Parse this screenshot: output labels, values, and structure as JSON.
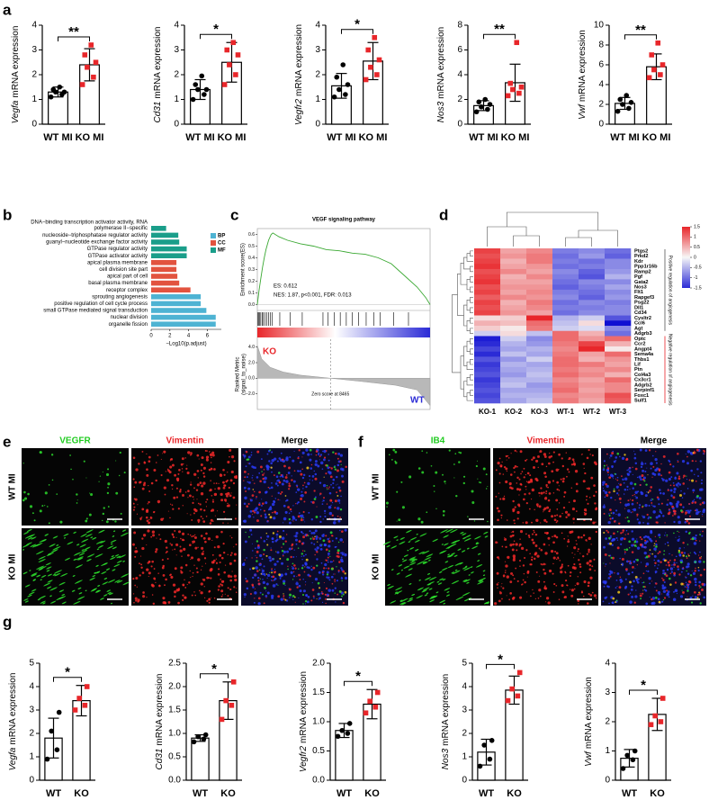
{
  "panel_labels": [
    "a",
    "b",
    "c",
    "d",
    "e",
    "f",
    "g"
  ],
  "chart_data": [
    {
      "type": "bar",
      "gene": "Vegfa",
      "ylabel": "mRNA expression",
      "categories": [
        "WT MI",
        "KO MI"
      ],
      "values": [
        1.3,
        2.4
      ],
      "errors": [
        0.2,
        0.65
      ],
      "points": [
        [
          1.1,
          1.2,
          1.3,
          1.3,
          1.4,
          1.5
        ],
        [
          1.6,
          1.9,
          2.3,
          2.5,
          2.8,
          3.2
        ]
      ],
      "colors": [
        "#000000",
        "#e8262a"
      ],
      "annotation": "**",
      "ylim": [
        0,
        4
      ],
      "yticks": [
        0,
        1,
        2,
        3,
        4
      ]
    },
    {
      "type": "bar",
      "gene": "Cd31",
      "ylabel": "mRNA expression",
      "categories": [
        "WT MI",
        "KO MI"
      ],
      "values": [
        1.4,
        2.5
      ],
      "errors": [
        0.4,
        0.8
      ],
      "points": [
        [
          1.0,
          1.2,
          1.4,
          1.4,
          1.6,
          1.95
        ],
        [
          1.6,
          2.0,
          2.4,
          2.8,
          3.0,
          3.3
        ]
      ],
      "colors": [
        "#000000",
        "#e8262a"
      ],
      "annotation": "*",
      "ylim": [
        0,
        4
      ],
      "yticks": [
        0,
        1,
        2,
        3,
        4
      ]
    },
    {
      "type": "bar",
      "gene": "Vegfr2",
      "ylabel": "mRNA expression",
      "categories": [
        "WT MI",
        "KO MI"
      ],
      "values": [
        1.55,
        2.55
      ],
      "errors": [
        0.5,
        0.75
      ],
      "points": [
        [
          1.1,
          1.2,
          1.4,
          1.6,
          1.9,
          2.4
        ],
        [
          1.8,
          2.0,
          2.3,
          2.6,
          3.0,
          3.5
        ]
      ],
      "colors": [
        "#000000",
        "#e8262a"
      ],
      "annotation": "*",
      "ylim": [
        0,
        4
      ],
      "yticks": [
        0,
        1,
        2,
        3,
        4
      ]
    },
    {
      "type": "bar",
      "gene": "Nos3",
      "ylabel": "mRNA expression",
      "categories": [
        "WT MI",
        "KO MI"
      ],
      "values": [
        1.5,
        3.35
      ],
      "errors": [
        0.4,
        1.5
      ],
      "points": [
        [
          1.0,
          1.2,
          1.4,
          1.6,
          1.8,
          2.0
        ],
        [
          2.3,
          2.5,
          2.8,
          3.0,
          3.3,
          6.6
        ]
      ],
      "colors": [
        "#000000",
        "#e8262a"
      ],
      "annotation": "**",
      "ylim": [
        0,
        8
      ],
      "yticks": [
        0,
        2,
        4,
        6,
        8
      ]
    },
    {
      "type": "bar",
      "gene": "Vwf",
      "ylabel": "mRNA expression",
      "categories": [
        "WT MI",
        "KO MI"
      ],
      "values": [
        2.1,
        5.8
      ],
      "errors": [
        0.6,
        1.3
      ],
      "points": [
        [
          1.3,
          1.6,
          2.0,
          2.2,
          2.5,
          2.9
        ],
        [
          4.7,
          5.0,
          5.5,
          6.0,
          7.0,
          8.2
        ]
      ],
      "colors": [
        "#000000",
        "#e8262a"
      ],
      "annotation": "**",
      "ylim": [
        0,
        10
      ],
      "yticks": [
        0,
        2,
        4,
        6,
        8,
        10
      ]
    },
    {
      "type": "hbar",
      "categories": [
        [
          "DNA−binding transcription activator activity, RNA",
          "polymerase II−specific"
        ],
        "nucleoside−triphosphatase regulator activity",
        "guanyl−nucleotide exchange factor activity",
        "GTPase regulator activity",
        "GTPase activator activity",
        "apical plasma membrane",
        "cell division site part",
        "apical part of cell",
        "basal plasma membrane",
        "receptor complex",
        "sprouting angiogenesis",
        "positive regulation of cell cycle process",
        "small GTPase mediated signal transduction",
        "nuclear division",
        "organelle fission"
      ],
      "series": [
        {
          "name": "BP",
          "color": "#4eb3d3",
          "values": [
            null,
            null,
            null,
            null,
            null,
            null,
            null,
            null,
            null,
            null,
            5.3,
            5.3,
            5.9,
            6.9,
            6.9
          ]
        },
        {
          "name": "CC",
          "color": "#e2533f",
          "values": [
            null,
            null,
            null,
            null,
            null,
            2.7,
            2.7,
            2.8,
            3.0,
            4.2,
            null,
            null,
            null,
            null,
            null
          ]
        },
        {
          "name": "MF",
          "color": "#1a9e8a",
          "values": [
            1.6,
            2.9,
            3.0,
            3.8,
            3.8,
            null,
            null,
            null,
            null,
            null,
            null,
            null,
            null,
            null,
            null
          ]
        }
      ],
      "xlabel": "−Log10(p.adjust)",
      "xlim": [
        0,
        7.5
      ],
      "xticks": [
        0,
        2,
        4,
        6
      ],
      "legend": "right"
    },
    {
      "type": "gsea",
      "title": "VEGF signaling pathway",
      "ylabel": "Enrichment score(ES)",
      "color": "#3aa832",
      "x": [
        0,
        200,
        400,
        600,
        800,
        1000,
        1300,
        1600,
        1800,
        2500,
        3500,
        5000,
        6500,
        8000,
        9500,
        11000,
        12500,
        14000,
        15500,
        17000,
        18500,
        19500,
        20000
      ],
      "values": [
        0,
        0.12,
        0.22,
        0.32,
        0.4,
        0.47,
        0.55,
        0.6,
        0.612,
        0.58,
        0.55,
        0.52,
        0.5,
        0.47,
        0.46,
        0.44,
        0.43,
        0.4,
        0.35,
        0.25,
        0.15,
        0.06,
        0
      ],
      "xlim": [
        0,
        20000
      ],
      "ylim": [
        -0.05,
        0.65
      ],
      "yticks": [
        {
          "value": 0,
          "label": "0.0"
        },
        0.1,
        0.2,
        0.3,
        0.4,
        0.5,
        0.6
      ],
      "hits": [
        50,
        150,
        250,
        400,
        550,
        700,
        900,
        1100,
        1300,
        1500,
        1700,
        2600,
        3800,
        5200,
        7600,
        8200,
        8900,
        9600,
        10300,
        11000,
        11700,
        12600,
        13500,
        14200,
        15800,
        17500
      ],
      "metric_x": [
        0,
        500,
        1500,
        3000,
        5000,
        8465,
        12000,
        16000,
        18500,
        20000
      ],
      "metric": [
        4.2,
        2.5,
        1.4,
        0.8,
        0.4,
        0,
        -0.4,
        -0.9,
        -1.5,
        -3.5
      ],
      "metric_ylim": [
        -4,
        5
      ],
      "metric_yticks": [
        {
          "value": 4,
          "label": "4.0"
        },
        {
          "value": 2,
          "label": "2.0"
        },
        {
          "value": 0,
          "label": "0.0"
        },
        {
          "value": -2,
          "label": "-2.0"
        }
      ],
      "metric_ylabel": [
        "Ranked Metric",
        "(signal_to_noise)"
      ],
      "zero_x": 8465,
      "es_label": "ES: 0.612",
      "stats": "NES: 1.87, p<0.001, FDR: 0.013",
      "zero_label": "Zero score at 8465",
      "low_label": "KO",
      "high_label": "WT"
    },
    {
      "type": "heatmap",
      "rows": [
        "Ptgs2",
        "Prkd2",
        "Kdr",
        "Ppp1r16b",
        "Ramp2",
        "Pgf",
        "Gata2",
        "Nos3",
        "Flt1",
        "Rapgef3",
        "Psg22",
        "Dll1",
        "Cd34",
        "Cysltr2",
        "Ccl6",
        "Agt",
        "Adgrb3",
        "Optc",
        "Ccr2",
        "Angpt4",
        "Sema4a",
        "Thbs1",
        "Lif",
        "Ptn",
        "Col4a3",
        "Cx3cr1",
        "Adgrb2",
        "Serpinf1",
        "Foxc1",
        "Sulf1"
      ],
      "columns": [
        "KO-1",
        "KO-2",
        "KO-3",
        "WT-1",
        "WT-2",
        "WT-3"
      ],
      "values": [
        [
          1.3,
          0.6,
          0.8,
          -0.9,
          -0.8,
          -1.0
        ],
        [
          1.2,
          0.7,
          0.9,
          -1.0,
          -0.7,
          -1.1
        ],
        [
          1.3,
          0.5,
          0.9,
          -0.9,
          -1.0,
          -0.8
        ],
        [
          1.4,
          0.6,
          0.7,
          -1.0,
          -0.9,
          -0.8
        ],
        [
          1.2,
          0.8,
          0.6,
          -0.8,
          -1.1,
          -0.7
        ],
        [
          1.3,
          0.5,
          0.8,
          -0.9,
          -1.2,
          -0.5
        ],
        [
          1.4,
          0.6,
          0.6,
          -1.0,
          -0.8,
          -0.8
        ],
        [
          1.2,
          0.7,
          0.7,
          -1.1,
          -0.9,
          -0.6
        ],
        [
          1.3,
          0.6,
          0.8,
          -0.9,
          -1.0,
          -0.8
        ],
        [
          1.1,
          0.8,
          0.7,
          -0.8,
          -1.1,
          -0.7
        ],
        [
          1.3,
          0.5,
          0.9,
          -1.0,
          -0.8,
          -0.9
        ],
        [
          1.2,
          0.6,
          0.8,
          -0.9,
          -0.9,
          -0.8
        ],
        [
          1.3,
          0.7,
          0.6,
          -1.0,
          -0.8,
          -0.8
        ],
        [
          0.2,
          0.3,
          1.5,
          -0.5,
          -0.3,
          -1.2
        ],
        [
          0.5,
          0.4,
          1.0,
          -0.4,
          0.2,
          -1.7
        ],
        [
          0.3,
          0.1,
          0.9,
          -0.3,
          -0.2,
          -0.8
        ],
        [
          -0.3,
          0.2,
          -0.4,
          1.0,
          0.5,
          -1.0
        ],
        [
          -1.6,
          -0.3,
          -0.8,
          1.0,
          0.7,
          1.0
        ],
        [
          -1.5,
          -0.5,
          -0.7,
          0.9,
          1.3,
          0.5
        ],
        [
          -1.3,
          -0.6,
          -0.5,
          0.8,
          1.5,
          0.1
        ],
        [
          -1.5,
          -0.4,
          -0.6,
          0.9,
          0.6,
          1.0
        ],
        [
          -1.2,
          -0.7,
          -0.3,
          1.0,
          0.5,
          0.7
        ],
        [
          -1.4,
          -0.5,
          -0.6,
          1.0,
          0.9,
          0.6
        ],
        [
          -1.3,
          -0.6,
          -0.5,
          0.9,
          0.7,
          0.8
        ],
        [
          -1.2,
          -0.7,
          -0.4,
          1.0,
          0.8,
          0.5
        ],
        [
          -1.4,
          -0.5,
          -0.5,
          0.8,
          0.6,
          1.0
        ],
        [
          -1.3,
          -0.4,
          -0.7,
          0.9,
          0.7,
          0.8
        ],
        [
          -1.2,
          -0.6,
          -0.6,
          1.0,
          0.6,
          0.8
        ],
        [
          -1.3,
          -0.5,
          -0.5,
          0.8,
          0.7,
          1.2
        ],
        [
          -1.2,
          -0.6,
          -0.4,
          0.9,
          0.6,
          1.1
        ]
      ],
      "zlim": [
        -1.5,
        1.5
      ],
      "zticks": [
        1.5,
        1,
        0.5,
        0,
        -0.5,
        -1,
        -1.5
      ],
      "colors": [
        "#2b2bd6",
        "#f7f7f7",
        "#e8262a"
      ],
      "groups": [
        "Positive regulation of angiogenesis",
        "Negative regulation of angiogenesis"
      ]
    },
    {
      "type": "bar",
      "gene": "Vegfa",
      "ylabel": "mRNA expression",
      "categories": [
        "WT",
        "KO"
      ],
      "values": [
        1.8,
        3.4
      ],
      "errors": [
        0.85,
        0.65
      ],
      "points": [
        [
          0.9,
          1.3,
          2.1,
          2.9
        ],
        [
          3.0,
          3.2,
          3.5,
          4.0
        ]
      ],
      "colors": [
        "#000000",
        "#e8262a"
      ],
      "annotation": "*",
      "ylim": [
        0,
        5
      ],
      "yticks": [
        0,
        1,
        2,
        3,
        4,
        5
      ]
    },
    {
      "type": "bar",
      "gene": "Cd31",
      "ylabel": "mRNA expression",
      "categories": [
        "WT",
        "KO"
      ],
      "values": [
        0.9,
        1.7
      ],
      "errors": [
        0.07,
        0.4
      ],
      "points": [
        [
          0.82,
          0.88,
          0.93,
          0.97
        ],
        [
          1.3,
          1.6,
          1.7,
          2.1
        ]
      ],
      "colors": [
        "#000000",
        "#e8262a"
      ],
      "annotation": "*",
      "ylim": [
        0,
        2.5
      ],
      "yticks": [
        {
          "value": 0,
          "label": "0.0"
        },
        0.5,
        {
          "value": 1,
          "label": "1.0"
        },
        1.5,
        {
          "value": 2,
          "label": "2.0"
        },
        2.5
      ]
    },
    {
      "type": "bar",
      "gene": "Vegfr2",
      "ylabel": "mRNA expression",
      "categories": [
        "WT",
        "KO"
      ],
      "values": [
        0.85,
        1.3
      ],
      "errors": [
        0.12,
        0.25
      ],
      "points": [
        [
          0.75,
          0.8,
          0.85,
          0.97
        ],
        [
          1.15,
          1.25,
          1.35,
          1.5
        ]
      ],
      "colors": [
        "#000000",
        "#e8262a"
      ],
      "annotation": "*",
      "ylim": [
        0,
        2
      ],
      "yticks": [
        {
          "value": 0,
          "label": "0.0"
        },
        0.5,
        {
          "value": 1,
          "label": "1.0"
        },
        1.5,
        {
          "value": 2,
          "label": "2.0"
        }
      ]
    },
    {
      "type": "bar",
      "gene": "Nos3",
      "ylabel": "mRNA expression",
      "categories": [
        "WT",
        "KO"
      ],
      "values": [
        1.2,
        3.85
      ],
      "errors": [
        0.55,
        0.6
      ],
      "points": [
        [
          0.6,
          0.9,
          1.5,
          1.7
        ],
        [
          3.4,
          3.6,
          3.9,
          4.6
        ]
      ],
      "colors": [
        "#000000",
        "#e8262a"
      ],
      "annotation": "*",
      "ylim": [
        0,
        5
      ],
      "yticks": [
        0,
        1,
        2,
        3,
        4,
        5
      ]
    },
    {
      "type": "bar",
      "gene": "Vwf",
      "ylabel": "mRNA expression",
      "categories": [
        "WT",
        "KO"
      ],
      "values": [
        0.75,
        2.25
      ],
      "errors": [
        0.3,
        0.55
      ],
      "points": [
        [
          0.4,
          0.7,
          0.85,
          1.0
        ],
        [
          1.9,
          2.0,
          2.2,
          2.8
        ]
      ],
      "colors": [
        "#000000",
        "#e8262a"
      ],
      "annotation": "*",
      "ylim": [
        0,
        4
      ],
      "yticks": [
        0,
        1,
        2,
        3,
        4
      ]
    }
  ],
  "micrographs": [
    {
      "columns": [
        "VEGFR",
        "Vimentin",
        "Merge"
      ],
      "column_colors": [
        "#22cc22",
        "#e8262a",
        "#000000"
      ],
      "rows": [
        "WT MI",
        "KO MI"
      ]
    },
    {
      "columns": [
        "IB4",
        "Vimentin",
        "Merge"
      ],
      "column_colors": [
        "#22cc22",
        "#e8262a",
        "#000000"
      ],
      "rows": [
        "WT MI",
        "KO MI"
      ]
    }
  ]
}
